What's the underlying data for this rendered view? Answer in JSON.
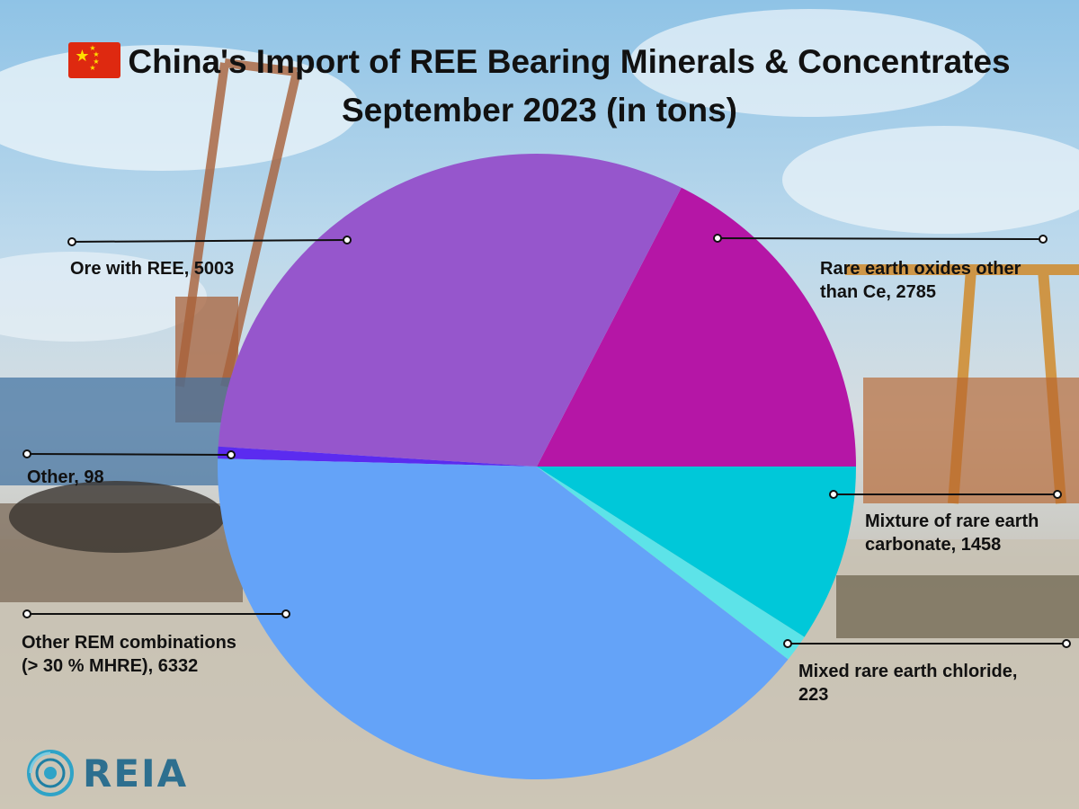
{
  "title": {
    "line1": "China's Import of REE Bearing Minerals & Concentrates",
    "line2": "September 2023 (in tons)"
  },
  "logo": {
    "text": "REIA"
  },
  "chart_data": {
    "type": "pie",
    "title": "China's Import of REE Bearing Minerals & Concentrates September 2023 (in tons)",
    "slices": [
      {
        "name": "Rare earth oxides other than Ce",
        "value": 2785,
        "label_lines": [
          "Rare earth oxides other",
          "than Ce, 2785"
        ],
        "color": "#b516a6"
      },
      {
        "name": "Ore with REE",
        "value": 5003,
        "label_lines": [
          "Ore with REE, 5003"
        ],
        "color": "#9656cc"
      },
      {
        "name": "Other",
        "value": 98,
        "label_lines": [
          "Other, 98"
        ],
        "color": "#5b2bf0"
      },
      {
        "name": "Other REM combinations (> 30 % MHRE)",
        "value": 6332,
        "label_lines": [
          "Other REM combinations",
          "(> 30 % MHRE), 6332"
        ],
        "color": "#64a3f8"
      },
      {
        "name": "Mixed rare earth chloride",
        "value": 223,
        "label_lines": [
          "Mixed rare earth chloride,",
          "223"
        ],
        "color": "#5de3e8"
      },
      {
        "name": "Mixture of rare earth carbonate",
        "value": 1458,
        "label_lines": [
          "Mixture of rare earth",
          "carbonate, 1458"
        ],
        "color": "#00c8d9"
      }
    ]
  }
}
